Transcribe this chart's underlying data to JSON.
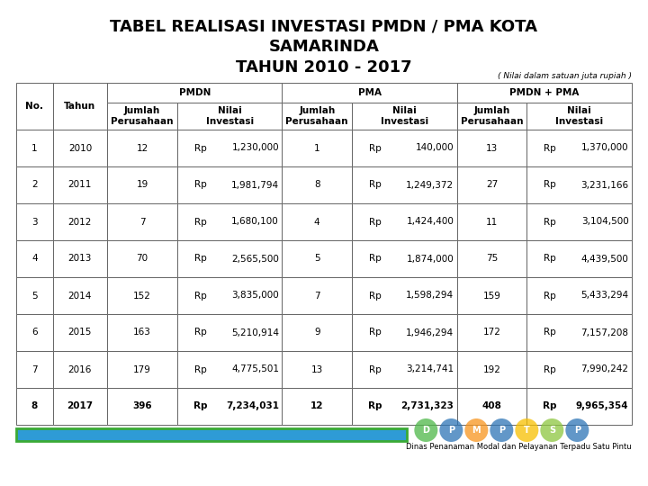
{
  "title_line1": "TABEL REALISASI INVESTASI PMDN / PMA KOTA",
  "title_line2": "SAMARINDA",
  "title_line3": "TAHUN 2010 - 2017",
  "subtitle_note": "( Nilai dalam satuan juta rupiah )",
  "rows": [
    [
      "1",
      "2010",
      "12",
      "Rp",
      "1,230,000",
      "1",
      "Rp",
      "140,000",
      "13",
      "Rp",
      "1,370,000"
    ],
    [
      "2",
      "2011",
      "19",
      "Rp",
      "1,981,794",
      "8",
      "Rp",
      "1,249,372",
      "27",
      "Rp",
      "3,231,166"
    ],
    [
      "3",
      "2012",
      "7",
      "Rp",
      "1,680,100",
      "4",
      "Rp",
      "1,424,400",
      "11",
      "Rp",
      "3,104,500"
    ],
    [
      "4",
      "2013",
      "70",
      "Rp",
      "2,565,500",
      "5",
      "Rp",
      "1,874,000",
      "75",
      "Rp",
      "4,439,500"
    ],
    [
      "5",
      "2014",
      "152",
      "Rp",
      "3,835,000",
      "7",
      "Rp",
      "1,598,294",
      "159",
      "Rp",
      "5,433,294"
    ],
    [
      "6",
      "2015",
      "163",
      "Rp",
      "5,210,914",
      "9",
      "Rp",
      "1,946,294",
      "172",
      "Rp",
      "7,157,208"
    ],
    [
      "7",
      "2016",
      "179",
      "Rp",
      "4,775,501",
      "13",
      "Rp",
      "3,214,741",
      "192",
      "Rp",
      "7,990,242"
    ],
    [
      "8",
      "2017",
      "396",
      "Rp",
      "7,234,031",
      "12",
      "Rp",
      "2,731,323",
      "408",
      "Rp",
      "9,965,354"
    ]
  ],
  "bg_color": "#ffffff",
  "border_color": "#666666",
  "title_fontsize": 13,
  "header_fontsize": 7.5,
  "data_fontsize": 7.5,
  "footer_bar_color": "#2e9bd6",
  "footer_text": "Dinas Penanaman Modal dan Pelayanan Terpadu Satu Pintu",
  "logo_colors": [
    "#4db848",
    "#2e75b6",
    "#f7941d",
    "#2e75b6",
    "#f7c000",
    "#8dc63f",
    "#2e75b6"
  ],
  "logo_letters": [
    "D",
    "P",
    "M",
    "P",
    "T",
    "S",
    "P"
  ]
}
